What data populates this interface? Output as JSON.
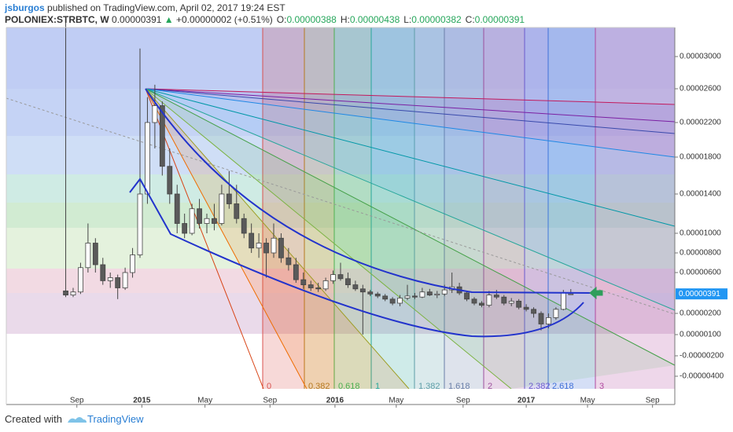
{
  "header": {
    "author": "jsburgos",
    "published": "published on TradingView.com, April 02, 2017 19:24 EST",
    "symbol": "POLONIEX:STRBTC, W",
    "price": "0.00000391",
    "change_arrow": "▲",
    "change": "+0.00000002 (+0.51%)",
    "ohlc": [
      {
        "label": "O:",
        "value": "0.00000388"
      },
      {
        "label": "H:",
        "value": "0.00000438"
      },
      {
        "label": "L:",
        "value": "0.00000382"
      },
      {
        "label": "C:",
        "value": "0.00000391"
      }
    ]
  },
  "chart_data": {
    "type": "candlestick",
    "up_color": "#ffffff",
    "down_color": "#5a5a5a",
    "wick_color": "#444444",
    "xlim": [
      -16,
      164
    ],
    "xticks": [
      {
        "value": 3,
        "label": "Sep"
      },
      {
        "value": 20.5,
        "label": "2015"
      },
      {
        "value": 37.5,
        "label": "May"
      },
      {
        "value": 55,
        "label": "Sep"
      },
      {
        "value": 72.5,
        "label": "2016"
      },
      {
        "value": 89,
        "label": "May"
      },
      {
        "value": 107,
        "label": "Sep"
      },
      {
        "value": 124,
        "label": "2017"
      },
      {
        "value": 140.5,
        "label": "May"
      },
      {
        "value": 158,
        "label": "Sep"
      }
    ],
    "ylim": [
      -5.2e-06,
      3.36e-05
    ],
    "yticks": [
      {
        "value": -4e-06,
        "label": "-0.00000400"
      },
      {
        "value": -2e-06,
        "label": "-0.00000200"
      },
      {
        "value": 1e-06,
        "label": "0.00000100"
      },
      {
        "value": 2e-06,
        "label": "0.00000200"
      },
      {
        "value": 6e-06,
        "label": "0.00000600"
      },
      {
        "value": 8e-06,
        "label": "0.00000800"
      },
      {
        "value": 1e-05,
        "label": "0.00001000"
      },
      {
        "value": 1.4e-05,
        "label": "0.00001400"
      },
      {
        "value": 1.8e-05,
        "label": "0.00001800"
      },
      {
        "value": 2.2e-05,
        "label": "0.00002200"
      },
      {
        "value": 2.6e-05,
        "label": "0.00002600"
      },
      {
        "value": 3e-05,
        "label": "0.00003000"
      }
    ],
    "last_price": {
      "value": 3.91e-06,
      "label": "0.00000391",
      "color": "#2196f3"
    },
    "fib_time_zones": [
      {
        "label": "0",
        "color": "#d9534f"
      },
      {
        "label": "0.382",
        "color": "#b5791f"
      },
      {
        "label": "0.618",
        "color": "#4caf50"
      },
      {
        "label": "1",
        "color": "#26a69a"
      },
      {
        "label": "1.382",
        "color": "#5d9ea8"
      },
      {
        "label": "1.618",
        "color": "#6a7fa8"
      },
      {
        "label": "2",
        "color": "#9c4f9c"
      },
      {
        "label": "2.382",
        "color": "#6a5acd"
      },
      {
        "label": "2.618",
        "color": "#3f6fd8"
      },
      {
        "label": "3",
        "color": "#b0489e"
      }
    ],
    "candles": [
      {
        "x": 0,
        "open": 4.2e-06,
        "high": 3.45e-05,
        "low": 3.6e-06,
        "close": 3.8e-06
      },
      {
        "x": 2,
        "open": 3.8e-06,
        "high": 4.5e-06,
        "low": 3.6e-06,
        "close": 4.1e-06
      },
      {
        "x": 4,
        "open": 4.1e-06,
        "high": 7e-06,
        "low": 3.9e-06,
        "close": 6.5e-06
      },
      {
        "x": 6,
        "open": 6.5e-06,
        "high": 1.1e-05,
        "low": 6e-06,
        "close": 9e-06
      },
      {
        "x": 8,
        "open": 9e-06,
        "high": 9.5e-06,
        "low": 6e-06,
        "close": 6.8e-06
      },
      {
        "x": 10,
        "open": 6.8e-06,
        "high": 7.5e-06,
        "low": 4.8e-06,
        "close": 5.2e-06
      },
      {
        "x": 12,
        "open": 5.2e-06,
        "high": 6e-06,
        "low": 4.5e-06,
        "close": 5.5e-06
      },
      {
        "x": 14,
        "open": 5.5e-06,
        "high": 5.8e-06,
        "low": 3.4e-06,
        "close": 4.5e-06
      },
      {
        "x": 16,
        "open": 4.5e-06,
        "high": 6.5e-06,
        "low": 4.3e-06,
        "close": 6e-06
      },
      {
        "x": 18,
        "open": 6e-06,
        "high": 8.5e-06,
        "low": 5.5e-06,
        "close": 7.8e-06
      },
      {
        "x": 20,
        "open": 7.8e-06,
        "high": 3.1e-05,
        "low": 7.5e-06,
        "close": 1.4e-05
      },
      {
        "x": 22,
        "open": 1.4e-05,
        "high": 2.5e-05,
        "low": 1.3e-05,
        "close": 2.2e-05
      },
      {
        "x": 24,
        "open": 2.2e-05,
        "high": 2.65e-05,
        "low": 1.9e-05,
        "close": 2.4e-05
      },
      {
        "x": 26,
        "open": 2.4e-05,
        "high": 2.45e-05,
        "low": 1.6e-05,
        "close": 1.7e-05
      },
      {
        "x": 28,
        "open": 1.7e-05,
        "high": 1.9e-05,
        "low": 1.3e-05,
        "close": 1.4e-05
      },
      {
        "x": 30,
        "open": 1.4e-05,
        "high": 1.5e-05,
        "low": 1e-05,
        "close": 1.1e-05
      },
      {
        "x": 32,
        "open": 1.1e-05,
        "high": 1.2e-05,
        "low": 9.5e-06,
        "close": 1e-05
      },
      {
        "x": 34,
        "open": 1e-05,
        "high": 1.3e-05,
        "low": 9.8e-06,
        "close": 1.25e-05
      },
      {
        "x": 36,
        "open": 1.25e-05,
        "high": 1.35e-05,
        "low": 1.05e-05,
        "close": 1.1e-05
      },
      {
        "x": 38,
        "open": 1.1e-05,
        "high": 1.2e-05,
        "low": 1e-05,
        "close": 1.15e-05
      },
      {
        "x": 40,
        "open": 1.15e-05,
        "high": 1.3e-05,
        "low": 1.03e-05,
        "close": 1.1e-05
      },
      {
        "x": 42,
        "open": 1.1e-05,
        "high": 1.5e-05,
        "low": 1.08e-05,
        "close": 1.4e-05
      },
      {
        "x": 44,
        "open": 1.4e-05,
        "high": 1.65e-05,
        "low": 1.25e-05,
        "close": 1.3e-05
      },
      {
        "x": 46,
        "open": 1.3e-05,
        "high": 1.5e-05,
        "low": 1.1e-05,
        "close": 1.15e-05
      },
      {
        "x": 48,
        "open": 1.15e-05,
        "high": 1.2e-05,
        "low": 9.5e-06,
        "close": 1e-05
      },
      {
        "x": 50,
        "open": 1e-05,
        "high": 1.1e-05,
        "low": 8e-06,
        "close": 8.5e-06
      },
      {
        "x": 52,
        "open": 8.5e-06,
        "high": 1e-05,
        "low": 7.5e-06,
        "close": 9e-06
      },
      {
        "x": 54,
        "open": 9e-06,
        "high": 9.5e-06,
        "low": 5.5e-06,
        "close": 8e-06
      },
      {
        "x": 56,
        "open": 8e-06,
        "high": 1.1e-05,
        "low": 7.5e-06,
        "close": 9.5e-06
      },
      {
        "x": 58,
        "open": 9.5e-06,
        "high": 1e-05,
        "low": 7e-06,
        "close": 7.5e-06
      },
      {
        "x": 60,
        "open": 7.5e-06,
        "high": 8.5e-06,
        "low": 6.2e-06,
        "close": 6.8e-06
      },
      {
        "x": 62,
        "open": 6.8e-06,
        "high": 7.5e-06,
        "low": 5e-06,
        "close": 5.3e-06
      },
      {
        "x": 64,
        "open": 5.3e-06,
        "high": 6e-06,
        "low": 4.4e-06,
        "close": 4.8e-06
      },
      {
        "x": 66,
        "open": 4.8e-06,
        "high": 5.2e-06,
        "low": 4.2e-06,
        "close": 4.5e-06
      },
      {
        "x": 68,
        "open": 4.5e-06,
        "high": 5e-06,
        "low": 4.1e-06,
        "close": 4.4e-06
      },
      {
        "x": 70,
        "open": 4.4e-06,
        "high": 5.5e-06,
        "low": 4.2e-06,
        "close": 5.2e-06
      },
      {
        "x": 72,
        "open": 5.2e-06,
        "high": 6.2e-06,
        "low": 4.9e-06,
        "close": 5.8e-06
      },
      {
        "x": 74,
        "open": 5.8e-06,
        "high": 7e-06,
        "low": 5.2e-06,
        "close": 5.4e-06
      },
      {
        "x": 76,
        "open": 5.4e-06,
        "high": 6e-06,
        "low": 4.5e-06,
        "close": 4.8e-06
      },
      {
        "x": 78,
        "open": 4.8e-06,
        "high": 5.2e-06,
        "low": 4.2e-06,
        "close": 4.4e-06
      },
      {
        "x": 80,
        "open": 4.4e-06,
        "high": 4.8e-06,
        "low": 1e-06,
        "close": 4.1e-06
      },
      {
        "x": 82,
        "open": 4.1e-06,
        "high": 4.3e-06,
        "low": 3.7e-06,
        "close": 3.9e-06
      },
      {
        "x": 84,
        "open": 3.9e-06,
        "high": 4.1e-06,
        "low": 3.5e-06,
        "close": 3.7e-06
      },
      {
        "x": 86,
        "open": 3.7e-06,
        "high": 3.9e-06,
        "low": 3.2e-06,
        "close": 3.4e-06
      },
      {
        "x": 88,
        "open": 3.4e-06,
        "high": 3.6e-06,
        "low": 2.8e-06,
        "close": 3e-06
      },
      {
        "x": 90,
        "open": 3e-06,
        "high": 3.8e-06,
        "low": 2.7e-06,
        "close": 3.5e-06
      },
      {
        "x": 92,
        "open": 3.5e-06,
        "high": 4.8e-06,
        "low": 3.3e-06,
        "close": 3.7e-06
      },
      {
        "x": 94,
        "open": 3.7e-06,
        "high": 4e-06,
        "low": 3.4e-06,
        "close": 3.6e-06
      },
      {
        "x": 96,
        "open": 3.6e-06,
        "high": 4.5e-06,
        "low": 3.5e-06,
        "close": 4.1e-06
      },
      {
        "x": 98,
        "open": 4.1e-06,
        "high": 4.4e-06,
        "low": 3.7e-06,
        "close": 3.8e-06
      },
      {
        "x": 100,
        "open": 3.8e-06,
        "high": 4.2e-06,
        "low": 3.5e-06,
        "close": 3.9e-06
      },
      {
        "x": 102,
        "open": 3.9e-06,
        "high": 4.8e-06,
        "low": 3.7e-06,
        "close": 4.3e-06
      },
      {
        "x": 104,
        "open": 4.3e-06,
        "high": 6e-06,
        "low": 4e-06,
        "close": 4.6e-06
      },
      {
        "x": 106,
        "open": 4.6e-06,
        "high": 5e-06,
        "low": 3.8e-06,
        "close": 4e-06
      },
      {
        "x": 108,
        "open": 4e-06,
        "high": 4.2e-06,
        "low": 3.2e-06,
        "close": 3.4e-06
      },
      {
        "x": 110,
        "open": 3.4e-06,
        "high": 3.6e-06,
        "low": 2.8e-06,
        "close": 3e-06
      },
      {
        "x": 112,
        "open": 3e-06,
        "high": 3.2e-06,
        "low": 2.6e-06,
        "close": 2.8e-06
      },
      {
        "x": 114,
        "open": 2.8e-06,
        "high": 4.2e-06,
        "low": 2.6e-06,
        "close": 3.8e-06
      },
      {
        "x": 116,
        "open": 3.8e-06,
        "high": 4.3e-06,
        "low": 3.4e-06,
        "close": 3.6e-06
      },
      {
        "x": 118,
        "open": 3.6e-06,
        "high": 3.8e-06,
        "low": 2.8e-06,
        "close": 3e-06
      },
      {
        "x": 120,
        "open": 3e-06,
        "high": 3.5e-06,
        "low": 2.7e-06,
        "close": 3.2e-06
      },
      {
        "x": 122,
        "open": 3.2e-06,
        "high": 3.4e-06,
        "low": 2.4e-06,
        "close": 2.6e-06
      },
      {
        "x": 124,
        "open": 2.6e-06,
        "high": 2.9e-06,
        "low": 2.2e-06,
        "close": 2.4e-06
      },
      {
        "x": 126,
        "open": 2.4e-06,
        "high": 2.6e-06,
        "low": 1.8e-06,
        "close": 2e-06
      },
      {
        "x": 128,
        "open": 2e-06,
        "high": 2.2e-06,
        "low": 1.2e-06,
        "close": 1.5e-06
      },
      {
        "x": 130,
        "open": 1.5e-06,
        "high": 2e-06,
        "low": 1.3e-06,
        "close": 1.8e-06
      },
      {
        "x": 132,
        "open": 1.8e-06,
        "high": 2.6e-06,
        "low": 1.7e-06,
        "close": 2.4e-06
      },
      {
        "x": 134,
        "open": 2.4e-06,
        "high": 4.3e-06,
        "low": 2.3e-06,
        "close": 4e-06
      },
      {
        "x": 136,
        "open": 3.88e-06,
        "high": 4.38e-06,
        "low": 3.82e-06,
        "close": 3.91e-06
      }
    ]
  },
  "footer": {
    "created": "Created with",
    "brand": "TradingView"
  }
}
